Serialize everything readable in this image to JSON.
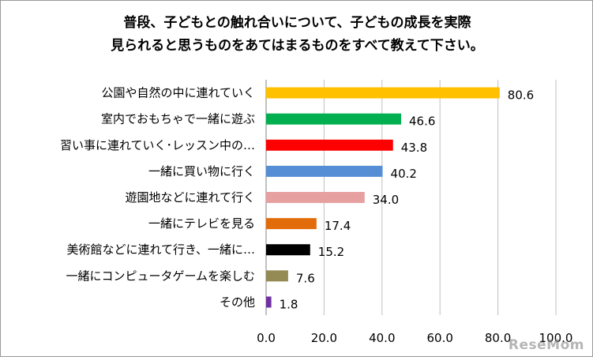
{
  "chart_data": {
    "type": "bar",
    "orientation": "horizontal",
    "title": "普段、子どもとの触れ合いについて、子どもの成長を実際\n見られると思うものをあてはまるものをすべて教えて下さい。",
    "categories": [
      "公園や自然の中に連れていく",
      "室内でおもちゃで一緒に遊ぶ",
      "習い事に連れていく･レッスン中の…",
      "一緒に買い物に行く",
      "遊園地などに連れて行く",
      "一緒にテレビを見る",
      "美術館などに連れて行き、一緒に…",
      "一緒にコンピュータゲームを楽しむ",
      "その他"
    ],
    "values": [
      80.6,
      46.6,
      43.8,
      40.2,
      34.0,
      17.4,
      15.2,
      7.6,
      1.8
    ],
    "value_labels": [
      "80.6",
      "46.6",
      "43.8",
      "40.2",
      "34.0",
      "17.4",
      "15.2",
      "7.6",
      "1.8"
    ],
    "colors": [
      "#ffc000",
      "#00b050",
      "#ff0000",
      "#558ed5",
      "#e6a0a0",
      "#e36c0a",
      "#000000",
      "#948a54",
      "#7030a0"
    ],
    "xlim": [
      0,
      100
    ],
    "xticks": [
      "0.0",
      "20.0",
      "40.0",
      "60.0",
      "80.0",
      "100.0"
    ],
    "grid": true,
    "legend": "none"
  },
  "watermark": "ReseMom"
}
